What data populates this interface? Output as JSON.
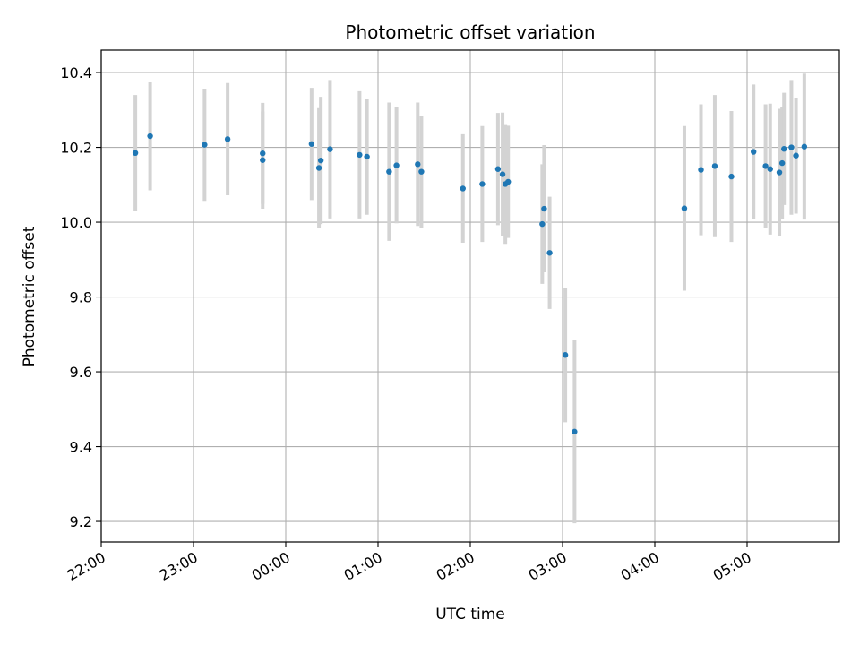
{
  "chart_data": {
    "type": "scatter",
    "title": "Photometric offset variation",
    "xlabel": "UTC time",
    "ylabel": "Photometric offset",
    "xlim_hours": [
      -2,
      6
    ],
    "ylim": [
      9.145,
      10.46
    ],
    "x_ticks": [
      {
        "value": -2,
        "label": "22:00"
      },
      {
        "value": -1,
        "label": "23:00"
      },
      {
        "value": 0,
        "label": "00:00"
      },
      {
        "value": 1,
        "label": "01:00"
      },
      {
        "value": 2,
        "label": "02:00"
      },
      {
        "value": 3,
        "label": "03:00"
      },
      {
        "value": 4,
        "label": "04:00"
      },
      {
        "value": 5,
        "label": "05:00"
      }
    ],
    "y_ticks": [
      {
        "value": 9.2,
        "label": "9.2"
      },
      {
        "value": 9.4,
        "label": "9.4"
      },
      {
        "value": 9.6,
        "label": "9.6"
      },
      {
        "value": 9.8,
        "label": "9.8"
      },
      {
        "value": 10.0,
        "label": "10.0"
      },
      {
        "value": 10.2,
        "label": "10.2"
      },
      {
        "value": 10.4,
        "label": "10.4"
      }
    ],
    "grid": true,
    "colors": {
      "point": "#1f77b4",
      "errorbar": "#d3d3d3",
      "grid": "#b0b0b0"
    },
    "points": [
      {
        "x": -1.63,
        "y": 10.185,
        "err": 0.155
      },
      {
        "x": -1.47,
        "y": 10.23,
        "err": 0.145
      },
      {
        "x": -0.88,
        "y": 10.207,
        "err": 0.15
      },
      {
        "x": -0.63,
        "y": 10.222,
        "err": 0.15
      },
      {
        "x": -0.25,
        "y": 10.166,
        "err": 0.13
      },
      {
        "x": -0.25,
        "y": 10.184,
        "err": 0.135
      },
      {
        "x": 0.28,
        "y": 10.209,
        "err": 0.15
      },
      {
        "x": 0.36,
        "y": 10.145,
        "err": 0.16
      },
      {
        "x": 0.38,
        "y": 10.165,
        "err": 0.17
      },
      {
        "x": 0.48,
        "y": 10.195,
        "err": 0.185
      },
      {
        "x": 0.8,
        "y": 10.18,
        "err": 0.17
      },
      {
        "x": 0.88,
        "y": 10.175,
        "err": 0.155
      },
      {
        "x": 1.12,
        "y": 10.135,
        "err": 0.185
      },
      {
        "x": 1.2,
        "y": 10.152,
        "err": 0.155
      },
      {
        "x": 1.43,
        "y": 10.155,
        "err": 0.165
      },
      {
        "x": 1.47,
        "y": 10.135,
        "err": 0.15
      },
      {
        "x": 1.92,
        "y": 10.09,
        "err": 0.145
      },
      {
        "x": 2.13,
        "y": 10.102,
        "err": 0.155
      },
      {
        "x": 2.3,
        "y": 10.142,
        "err": 0.15
      },
      {
        "x": 2.35,
        "y": 10.128,
        "err": 0.165
      },
      {
        "x": 2.38,
        "y": 10.102,
        "err": 0.16
      },
      {
        "x": 2.41,
        "y": 10.108,
        "err": 0.15
      },
      {
        "x": 2.78,
        "y": 9.995,
        "err": 0.16
      },
      {
        "x": 2.8,
        "y": 10.036,
        "err": 0.17
      },
      {
        "x": 2.86,
        "y": 9.918,
        "err": 0.15
      },
      {
        "x": 3.03,
        "y": 9.645,
        "err": 0.18
      },
      {
        "x": 3.13,
        "y": 9.44,
        "err": 0.245
      },
      {
        "x": 4.32,
        "y": 10.037,
        "err": 0.22
      },
      {
        "x": 4.5,
        "y": 10.14,
        "err": 0.175
      },
      {
        "x": 4.65,
        "y": 10.15,
        "err": 0.19
      },
      {
        "x": 4.83,
        "y": 10.122,
        "err": 0.175
      },
      {
        "x": 5.07,
        "y": 10.188,
        "err": 0.18
      },
      {
        "x": 5.2,
        "y": 10.15,
        "err": 0.165
      },
      {
        "x": 5.25,
        "y": 10.142,
        "err": 0.175
      },
      {
        "x": 5.35,
        "y": 10.133,
        "err": 0.17
      },
      {
        "x": 5.38,
        "y": 10.158,
        "err": 0.15
      },
      {
        "x": 5.4,
        "y": 10.196,
        "err": 0.15
      },
      {
        "x": 5.48,
        "y": 10.2,
        "err": 0.18
      },
      {
        "x": 5.53,
        "y": 10.178,
        "err": 0.155
      },
      {
        "x": 5.62,
        "y": 10.202,
        "err": 0.195
      }
    ]
  }
}
